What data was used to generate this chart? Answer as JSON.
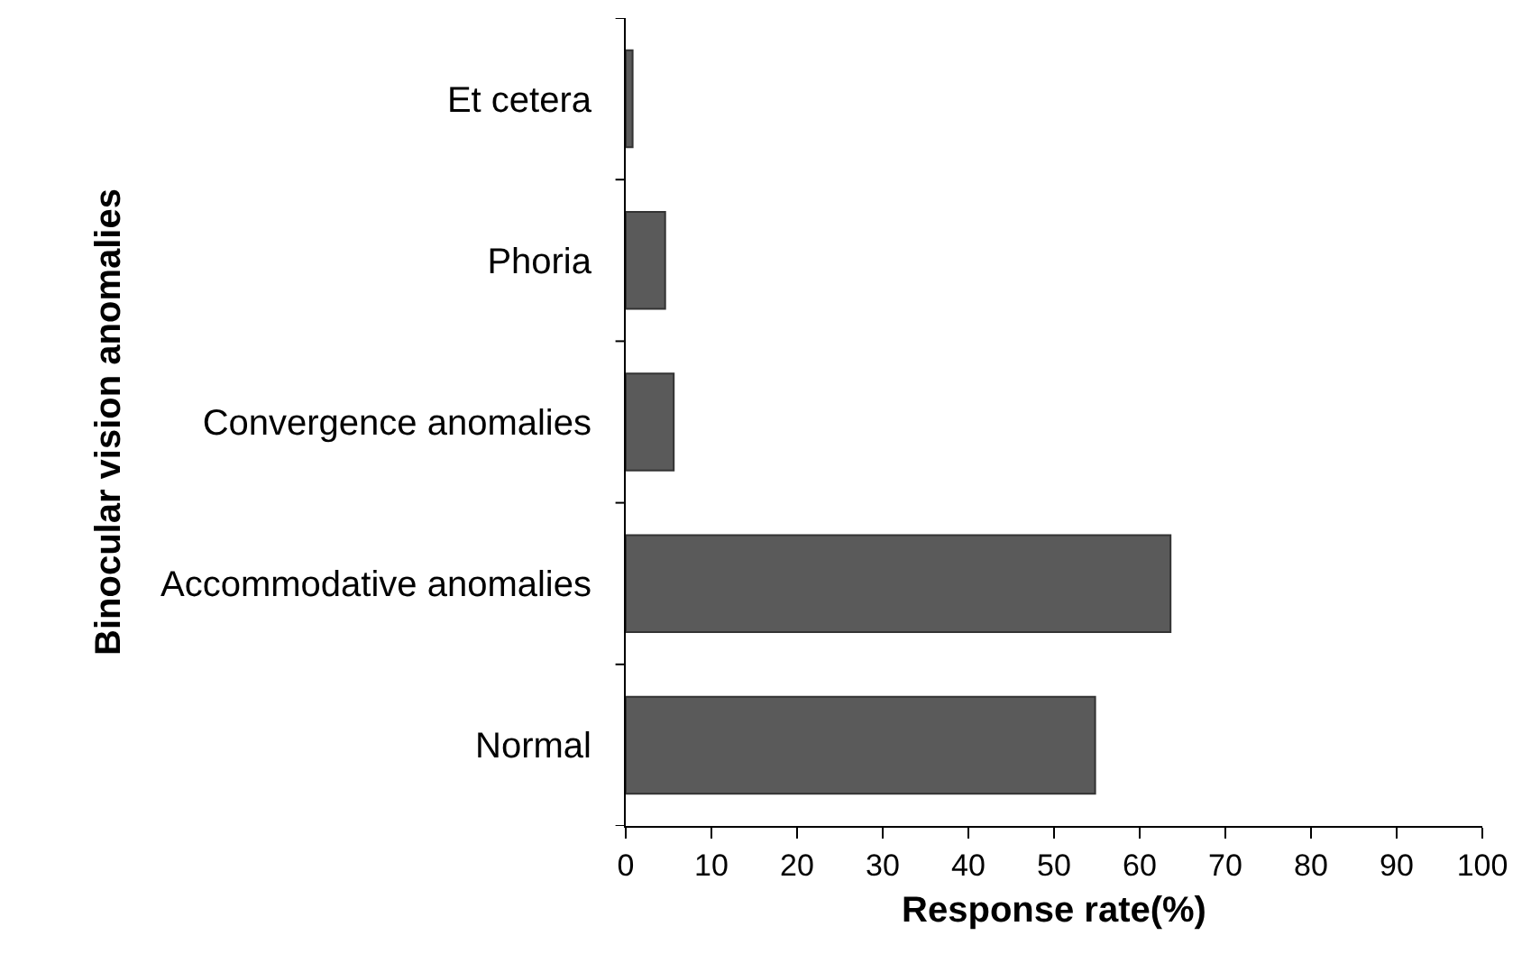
{
  "chart_data": {
    "type": "bar",
    "orientation": "horizontal",
    "xlabel": "Response rate(%)",
    "ylabel": "Binocular vision anomalies",
    "categories": [
      "Et cetera",
      "Phoria",
      "Convergence anomalies",
      "Accommodative anomalies",
      "Normal"
    ],
    "values": [
      0.8,
      4.6,
      5.6,
      63.6,
      54.8
    ],
    "color": "#5a5a5a",
    "xlim": [
      0,
      100
    ],
    "xticks": [
      0,
      10,
      20,
      30,
      40,
      50,
      60,
      70,
      80,
      90,
      100
    ],
    "grid": false
  }
}
